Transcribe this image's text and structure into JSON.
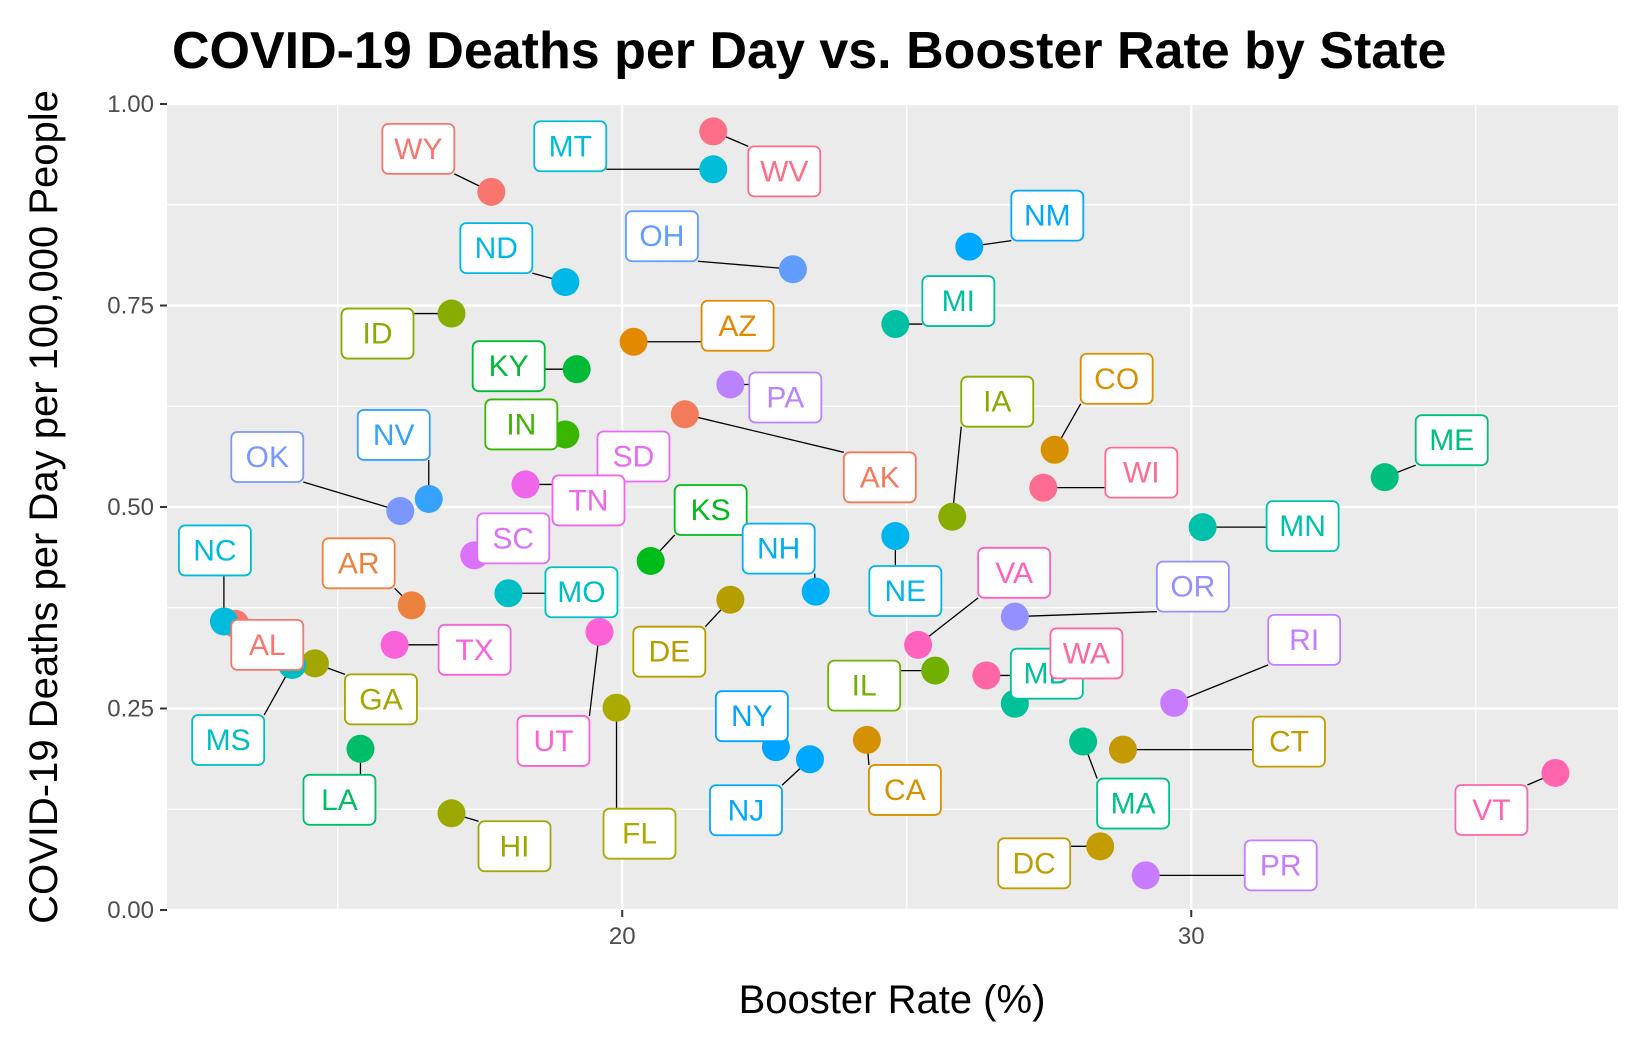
{
  "chart_data": {
    "type": "scatter",
    "title": "COVID-19 Deaths per Day vs. Booster Rate by State",
    "xlabel": "Booster Rate (%)",
    "ylabel": "COVID-19 Deaths per Day per 100,000 People",
    "xlim": [
      12.0,
      37.5
    ],
    "ylim": [
      0.0,
      1.0
    ],
    "x_ticks": [
      20,
      30
    ],
    "x_tick_labels": [
      "20",
      "30"
    ],
    "y_ticks": [
      0.0,
      0.25,
      0.5,
      0.75,
      1.0
    ],
    "y_tick_labels": [
      "0.00",
      "0.25",
      "0.50",
      "0.75",
      "1.00"
    ],
    "legend": "none",
    "grid": true,
    "panel_background": "#ebebeb",
    "points": [
      {
        "label": "AK",
        "x": 21.1,
        "y": 0.615,
        "color": "#f37b59"
      },
      {
        "label": "AL",
        "x": 13.2,
        "y": 0.355,
        "color": "#f8766d"
      },
      {
        "label": "AR",
        "x": 16.3,
        "y": 0.378,
        "color": "#ed813e"
      },
      {
        "label": "AZ",
        "x": 20.2,
        "y": 0.705,
        "color": "#e38900"
      },
      {
        "label": "CA",
        "x": 24.3,
        "y": 0.211,
        "color": "#d69100"
      },
      {
        "label": "CO",
        "x": 27.6,
        "y": 0.571,
        "color": "#d89000"
      },
      {
        "label": "CT",
        "x": 28.8,
        "y": 0.199,
        "color": "#c49a00"
      },
      {
        "label": "DC",
        "x": 28.4,
        "y": 0.079,
        "color": "#c29c00"
      },
      {
        "label": "DE",
        "x": 21.9,
        "y": 0.385,
        "color": "#b69e00"
      },
      {
        "label": "FL",
        "x": 19.9,
        "y": 0.251,
        "color": "#abaa00"
      },
      {
        "label": "GA",
        "x": 14.6,
        "y": 0.306,
        "color": "#a3a500"
      },
      {
        "label": "HI",
        "x": 17.0,
        "y": 0.12,
        "color": "#9aa800"
      },
      {
        "label": "IA",
        "x": 25.8,
        "y": 0.488,
        "color": "#86ac00"
      },
      {
        "label": "ID",
        "x": 17.0,
        "y": 0.74,
        "color": "#87ad00"
      },
      {
        "label": "IL",
        "x": 25.5,
        "y": 0.297,
        "color": "#72b000"
      },
      {
        "label": "IN",
        "x": 19.0,
        "y": 0.59,
        "color": "#39b600"
      },
      {
        "label": "KS",
        "x": 20.5,
        "y": 0.433,
        "color": "#00bc18"
      },
      {
        "label": "KY",
        "x": 19.2,
        "y": 0.671,
        "color": "#00ba38"
      },
      {
        "label": "LA",
        "x": 15.4,
        "y": 0.2,
        "color": "#00be67"
      },
      {
        "label": "MA",
        "x": 28.1,
        "y": 0.209,
        "color": "#00c08b"
      },
      {
        "label": "MD",
        "x": 26.9,
        "y": 0.256,
        "color": "#00c19a"
      },
      {
        "label": "ME",
        "x": 33.4,
        "y": 0.537,
        "color": "#00bf7d"
      },
      {
        "label": "MI",
        "x": 24.8,
        "y": 0.727,
        "color": "#00c0a3"
      },
      {
        "label": "MN",
        "x": 30.2,
        "y": 0.475,
        "color": "#00c1aa"
      },
      {
        "label": "MO",
        "x": 18.0,
        "y": 0.393,
        "color": "#00bfc4"
      },
      {
        "label": "MS",
        "x": 14.2,
        "y": 0.304,
        "color": "#00bdc2"
      },
      {
        "label": "MT",
        "x": 21.6,
        "y": 0.919,
        "color": "#00bcd8"
      },
      {
        "label": "NC",
        "x": 13.0,
        "y": 0.358,
        "color": "#00bbdb"
      },
      {
        "label": "ND",
        "x": 19.0,
        "y": 0.779,
        "color": "#00b8e7"
      },
      {
        "label": "NE",
        "x": 24.8,
        "y": 0.464,
        "color": "#00b5ee"
      },
      {
        "label": "NH",
        "x": 23.4,
        "y": 0.395,
        "color": "#00b0f6"
      },
      {
        "label": "NJ",
        "x": 23.3,
        "y": 0.187,
        "color": "#00a9ff"
      },
      {
        "label": "NM",
        "x": 26.1,
        "y": 0.823,
        "color": "#00a9ff"
      },
      {
        "label": "NV",
        "x": 16.6,
        "y": 0.51,
        "color": "#35a2ff"
      },
      {
        "label": "NY",
        "x": 22.7,
        "y": 0.202,
        "color": "#00a5ff"
      },
      {
        "label": "OH",
        "x": 23.0,
        "y": 0.795,
        "color": "#619cff"
      },
      {
        "label": "OK",
        "x": 16.1,
        "y": 0.495,
        "color": "#7997ff"
      },
      {
        "label": "OR",
        "x": 26.9,
        "y": 0.364,
        "color": "#9590ff"
      },
      {
        "label": "PA",
        "x": 21.9,
        "y": 0.652,
        "color": "#b983ff"
      },
      {
        "label": "PR",
        "x": 29.2,
        "y": 0.043,
        "color": "#c77cff"
      },
      {
        "label": "RI",
        "x": 29.7,
        "y": 0.257,
        "color": "#c77cff"
      },
      {
        "label": "SC",
        "x": 17.4,
        "y": 0.44,
        "color": "#dc71fa"
      },
      {
        "label": "SD",
        "x": 19.6,
        "y": 0.518,
        "color": "#e76bf3"
      },
      {
        "label": "TN",
        "x": 18.3,
        "y": 0.528,
        "color": "#f066ea"
      },
      {
        "label": "TX",
        "x": 16.0,
        "y": 0.329,
        "color": "#fa62db"
      },
      {
        "label": "UT",
        "x": 19.6,
        "y": 0.345,
        "color": "#fc61d5"
      },
      {
        "label": "VA",
        "x": 25.2,
        "y": 0.329,
        "color": "#ff62bc"
      },
      {
        "label": "VT",
        "x": 36.4,
        "y": 0.17,
        "color": "#ff65ae"
      },
      {
        "label": "WA",
        "x": 26.4,
        "y": 0.291,
        "color": "#ff67a4"
      },
      {
        "label": "WI",
        "x": 27.4,
        "y": 0.524,
        "color": "#ff6c91"
      },
      {
        "label": "WV",
        "x": 21.6,
        "y": 0.966,
        "color": "#fd6f86"
      },
      {
        "label": "WY",
        "x": 17.7,
        "y": 0.891,
        "color": "#f8766d"
      }
    ]
  }
}
